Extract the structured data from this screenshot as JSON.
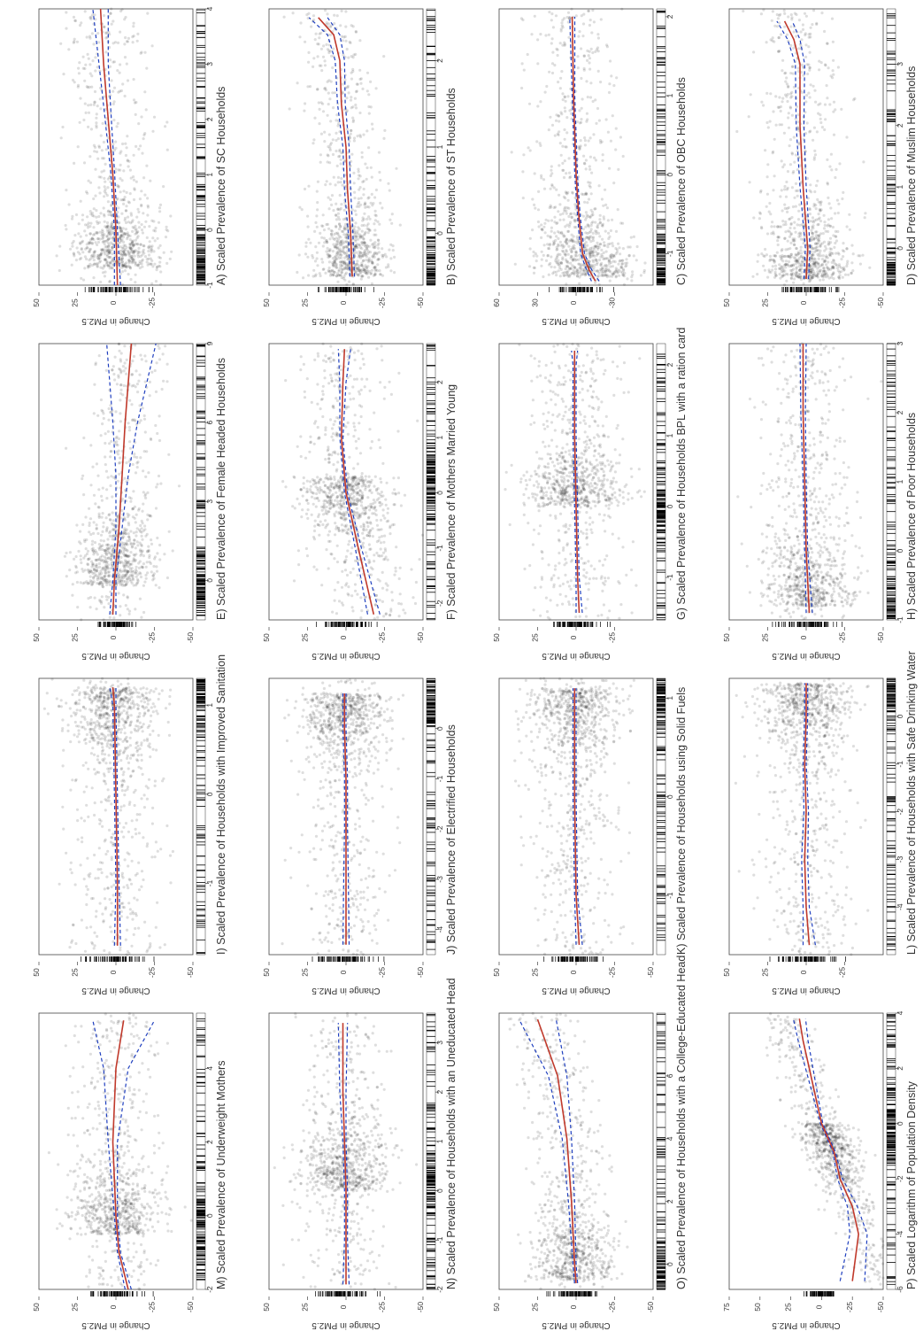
{
  "figure": {
    "layout_note": "",
    "colors": {
      "points": "#000000",
      "fit": "#c0392b",
      "ci": "#1f3fbf",
      "rug": "#000000"
    }
  },
  "chart_data": [
    {
      "id": "A",
      "type": "scatter",
      "title": "A)  Scaled Prevalence of SC Households",
      "xlabel": "",
      "ylabel": "Change in PM2.5",
      "xlim": [
        -1,
        4
      ],
      "ylim": [
        -50,
        50
      ],
      "xticks": [
        -1,
        0,
        1,
        2,
        3,
        4
      ],
      "yticks": [
        50,
        25,
        0,
        -25
      ],
      "x_density_peak": -0.7,
      "spread": 14,
      "fit": {
        "x": [
          -1,
          0,
          1,
          2,
          3,
          4
        ],
        "y": [
          -1,
          0,
          2,
          5,
          8,
          10
        ]
      },
      "ci_halfwidth": [
        2,
        1,
        1.2,
        2,
        3,
        5
      ]
    },
    {
      "id": "B",
      "type": "scatter",
      "title": "B)  Scaled Prevalence of ST Households",
      "xlabel": "",
      "ylabel": "Change in PM2.5",
      "xlim": [
        -0.6,
        2.6
      ],
      "ylim": [
        -50,
        50
      ],
      "xticks": [
        0,
        1,
        2
      ],
      "yticks": [
        50,
        25,
        0,
        -25,
        -50
      ],
      "x_density_peak": -0.5,
      "spread": 12,
      "fit": {
        "x": [
          -0.5,
          0,
          0.5,
          1,
          1.5,
          2,
          2.3,
          2.5
        ],
        "y": [
          -4,
          -3,
          -1,
          0,
          3,
          4,
          8,
          18
        ]
      },
      "ci_halfwidth": [
        1.5,
        1.5,
        2,
        2,
        2.5,
        3,
        4,
        6
      ]
    },
    {
      "id": "C",
      "type": "scatter",
      "title": "C)  Scaled Prevalence of OBC Households",
      "xlabel": "",
      "ylabel": "Change in PM2.5",
      "xlim": [
        -1.4,
        2.1
      ],
      "ylim": [
        -60,
        60
      ],
      "xticks": [
        -1,
        0,
        1,
        2
      ],
      "yticks": [
        60,
        30,
        0,
        -30
      ],
      "x_density_peak": -1.3,
      "spread": 18,
      "fit": {
        "x": [
          -1.35,
          -1.2,
          -1,
          -0.5,
          0,
          1,
          2
        ],
        "y": [
          -15,
          -10,
          -5,
          -2,
          0,
          2,
          3
        ]
      },
      "ci_halfwidth": [
        3,
        2,
        1.5,
        1,
        1,
        1,
        2
      ]
    },
    {
      "id": "D",
      "type": "scatter",
      "title": "D)  Scaled Prevalence of Muslim Households",
      "xlabel": "",
      "ylabel": "Change in PM2.5",
      "xlim": [
        -0.6,
        3.9
      ],
      "ylim": [
        -50,
        50
      ],
      "xticks": [
        0,
        1,
        2,
        3
      ],
      "yticks": [
        50,
        25,
        0,
        -25,
        -50
      ],
      "x_density_peak": -0.5,
      "spread": 14,
      "fit": {
        "x": [
          -0.5,
          0,
          1,
          2,
          3,
          3.4,
          3.7
        ],
        "y": [
          0,
          -1,
          2,
          4,
          4,
          8,
          14
        ]
      },
      "ci_halfwidth": [
        1.5,
        1.5,
        2,
        2.5,
        3,
        4,
        5
      ]
    },
    {
      "id": "E",
      "type": "scatter",
      "title": "E)  Scaled Prevalence of Female Headed Households",
      "xlabel": "",
      "ylabel": "Change in PM2.5",
      "xlim": [
        -1.5,
        9
      ],
      "ylim": [
        -50,
        50
      ],
      "xticks": [
        0,
        3,
        6,
        9
      ],
      "yticks": [
        50,
        25,
        0,
        -25,
        -50
      ],
      "x_density_peak": -0.2,
      "spread": 12,
      "fit": {
        "x": [
          -1.3,
          0,
          2,
          4,
          6,
          9
        ],
        "y": [
          2,
          1,
          -2,
          -4,
          -6,
          -10
        ]
      },
      "ci_halfwidth": [
        2,
        1,
        2,
        4,
        8,
        16
      ]
    },
    {
      "id": "F",
      "type": "scatter",
      "title": "F)  Scaled Prevalence of Mothers Married Young",
      "xlabel": "",
      "ylabel": "Change in PM2.5",
      "xlim": [
        -2.3,
        2.7
      ],
      "ylim": [
        -50,
        50
      ],
      "xticks": [
        -2,
        -1,
        0,
        1,
        2
      ],
      "yticks": [
        50,
        25,
        0,
        -25,
        -50
      ],
      "x_density_peak": 0.3,
      "spread": 14,
      "fit": {
        "x": [
          -2.2,
          -1,
          0,
          1,
          2,
          2.6
        ],
        "y": [
          -18,
          -8,
          0,
          3,
          2,
          1
        ]
      },
      "ci_halfwidth": [
        4,
        2,
        1,
        1,
        2,
        4
      ]
    },
    {
      "id": "G",
      "type": "scatter",
      "title": "G)  Scaled Prevalence of Households BPL with a ration card",
      "xlabel": "",
      "ylabel": "Change in PM2.5",
      "xlim": [
        -1.6,
        2.3
      ],
      "ylim": [
        -50,
        50
      ],
      "xticks": [
        -1,
        0,
        1,
        2
      ],
      "yticks": [
        50,
        25,
        0,
        -25
      ],
      "x_density_peak": 0,
      "spread": 15,
      "fit": {
        "x": [
          -1.5,
          -1,
          0,
          1,
          2,
          2.2
        ],
        "y": [
          -2,
          -1,
          0,
          1,
          1,
          1
        ]
      },
      "ci_halfwidth": [
        2,
        1,
        1,
        1,
        1,
        2
      ]
    },
    {
      "id": "H",
      "type": "scatter",
      "title": "H)  Scaled Prevalence of Poor Households",
      "xlabel": "",
      "ylabel": "Change in PM2.5",
      "xlim": [
        -1,
        3
      ],
      "ylim": [
        -50,
        50
      ],
      "xticks": [
        -1,
        0,
        1,
        2,
        3
      ],
      "yticks": [
        50,
        25,
        0,
        -25,
        -50
      ],
      "x_density_peak": -0.8,
      "spread": 15,
      "fit": {
        "x": [
          -0.9,
          0,
          1,
          2,
          3
        ],
        "y": [
          -2,
          0,
          1,
          2,
          2
        ]
      },
      "ci_halfwidth": [
        2,
        1,
        1,
        1.5,
        2
      ]
    },
    {
      "id": "I",
      "type": "scatter",
      "title": "I)  Scaled Prevalence of Households with Improved Sanitation",
      "xlabel": "",
      "ylabel": "Change in PM2.5",
      "xlim": [
        -1.8,
        1.3
      ],
      "ylim": [
        -50,
        50
      ],
      "xticks": [
        -1,
        0,
        1
      ],
      "yticks": [
        50,
        25,
        0,
        -25,
        -50
      ],
      "x_density_peak": 1.2,
      "spread": 15,
      "fit": {
        "x": [
          -1.7,
          -1,
          0,
          1,
          1.2
        ],
        "y": [
          -1,
          -1,
          0,
          1,
          2
        ]
      },
      "ci_halfwidth": [
        2,
        1,
        1,
        1,
        2
      ]
    },
    {
      "id": "J",
      "type": "scatter",
      "title": "J)  Scaled Prevalence of Electrified Households",
      "xlabel": "",
      "ylabel": "Change in PM2.5",
      "xlim": [
        -4.5,
        1
      ],
      "ylim": [
        -50,
        50
      ],
      "xticks": [
        -4,
        -3,
        -2,
        -1,
        0
      ],
      "yticks": [
        50,
        25,
        0,
        -25,
        -50
      ],
      "x_density_peak": 0.7,
      "spread": 14,
      "fit": {
        "x": [
          -4.3,
          -3,
          -2,
          -1,
          0,
          0.7
        ],
        "y": [
          0,
          0,
          0,
          0,
          1,
          1
        ]
      },
      "ci_halfwidth": [
        2,
        1.5,
        1,
        1,
        1,
        1
      ]
    },
    {
      "id": "K",
      "type": "scatter",
      "title": "K)  Scaled Prevalence of Households using Solid Fuels",
      "xlabel": "",
      "ylabel": "Change in PM2.5",
      "xlim": [
        -1.6,
        1.2
      ],
      "ylim": [
        -50,
        50
      ],
      "xticks": [
        -1,
        0,
        1
      ],
      "yticks": [
        50,
        25,
        0,
        -25,
        -50
      ],
      "x_density_peak": 1.1,
      "spread": 15,
      "fit": {
        "x": [
          -1.5,
          -1,
          0,
          1,
          1.1
        ],
        "y": [
          -2,
          0,
          1,
          1,
          1
        ]
      },
      "ci_halfwidth": [
        2,
        1,
        1,
        1,
        1
      ]
    },
    {
      "id": "L",
      "type": "scatter",
      "title": "L)  Scaled Prevalence of Households with Safe Drinking Water",
      "xlabel": "",
      "ylabel": "Change in PM2.5",
      "xlim": [
        -5,
        0.8
      ],
      "ylim": [
        -50,
        50
      ],
      "xticks": [
        -4,
        -3,
        -2,
        -1,
        0
      ],
      "yticks": [
        50,
        25,
        0,
        -25
      ],
      "x_density_peak": 0.7,
      "spread": 15,
      "fit": {
        "x": [
          -4.8,
          -4,
          -3,
          -2,
          -1,
          0,
          0.7
        ],
        "y": [
          -2,
          0,
          1,
          0,
          1,
          0,
          0
        ]
      },
      "ci_halfwidth": [
        4,
        2,
        2,
        1.5,
        1,
        1,
        1
      ]
    },
    {
      "id": "M",
      "type": "scatter",
      "title": "M)  Scaled Prevalence of Underweight Mothers",
      "xlabel": "",
      "ylabel": "Change in PM2.5",
      "xlim": [
        -2,
        5.5
      ],
      "ylim": [
        -50,
        50
      ],
      "xticks": [
        -2,
        0,
        2,
        4
      ],
      "yticks": [
        50,
        25,
        0,
        -25,
        -50
      ],
      "x_density_peak": -0.5,
      "spread": 14,
      "fit": {
        "x": [
          -2,
          -1,
          0,
          2,
          4,
          5.3
        ],
        "y": [
          -8,
          -2,
          0,
          2,
          0,
          -5
        ]
      },
      "ci_halfwidth": [
        2,
        1,
        1,
        3,
        8,
        20
      ]
    },
    {
      "id": "N",
      "type": "scatter",
      "title": "N)  Scaled Prevalence of Households with an Uneducated Head",
      "xlabel": "",
      "ylabel": "Change in PM2.5",
      "xlim": [
        -2,
        3.6
      ],
      "ylim": [
        -50,
        50
      ],
      "xticks": [
        -2,
        -1,
        0,
        1,
        2,
        3
      ],
      "yticks": [
        50,
        25,
        0,
        -25,
        -50
      ],
      "x_density_peak": 0,
      "spread": 14,
      "fit": {
        "x": [
          -1.9,
          -1,
          0,
          1,
          2,
          3.4
        ],
        "y": [
          0,
          0,
          0,
          1,
          2,
          2
        ]
      },
      "ci_halfwidth": [
        2,
        1,
        1,
        1,
        2,
        3
      ]
    },
    {
      "id": "O",
      "type": "scatter",
      "title": "O)  Scaled Prevalence of Households with a College-Educated Head",
      "xlabel": "",
      "ylabel": "Change in PM2.5",
      "xlim": [
        -0.8,
        8
      ],
      "ylim": [
        -50,
        50
      ],
      "xticks": [
        0,
        2,
        4,
        6
      ],
      "yticks": [
        50,
        25,
        0,
        -25,
        -50
      ],
      "x_density_peak": -0.5,
      "spread": 13,
      "fit": {
        "x": [
          -0.6,
          0,
          2,
          4,
          6,
          7.8
        ],
        "y": [
          0,
          1,
          3,
          6,
          12,
          25
        ]
      },
      "ci_halfwidth": [
        1,
        1,
        2,
        3,
        6,
        12
      ]
    },
    {
      "id": "P",
      "type": "scatter",
      "title": "P)  Scaled Logarithm of Population Density",
      "xlabel": "",
      "ylabel": "Change in PM2.5",
      "xlim": [
        -6,
        4
      ],
      "ylim": [
        -50,
        75
      ],
      "xticks": [
        -6,
        -4,
        -2,
        0,
        2,
        4
      ],
      "yticks": [
        75,
        50,
        25,
        0,
        -25,
        -50
      ],
      "x_density_peak": 0,
      "spread": 10,
      "slope": 9,
      "fit": {
        "x": [
          -5.7,
          -4,
          -3,
          -2,
          -1,
          0,
          1,
          2,
          3,
          3.8
        ],
        "y": [
          -25,
          -30,
          -25,
          -15,
          -10,
          0,
          5,
          10,
          15,
          18
        ]
      },
      "ci_halfwidth": [
        10,
        7,
        4,
        2,
        1,
        1,
        2,
        3,
        4,
        5
      ]
    }
  ]
}
